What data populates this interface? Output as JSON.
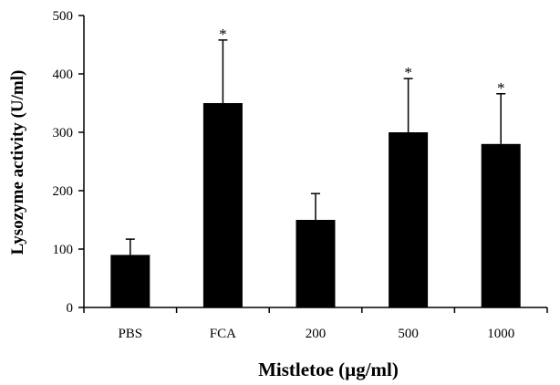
{
  "chart_data": {
    "type": "bar",
    "categories": [
      "PBS",
      "FCA",
      "200",
      "500",
      "1000"
    ],
    "values": [
      90,
      350,
      150,
      300,
      280
    ],
    "error_upper": [
      117,
      458,
      195,
      392,
      366
    ],
    "significance": [
      "",
      "*",
      "",
      "*",
      "*"
    ],
    "title": "",
    "xlabel": "Mistletoe (µg/ml)",
    "ylabel": "Lysozyme activity (U/ml)",
    "ylim": [
      0,
      500
    ],
    "yticks": [
      0,
      100,
      200,
      300,
      400,
      500
    ],
    "grid": false,
    "legend": "none",
    "bar_color": "#000000"
  }
}
